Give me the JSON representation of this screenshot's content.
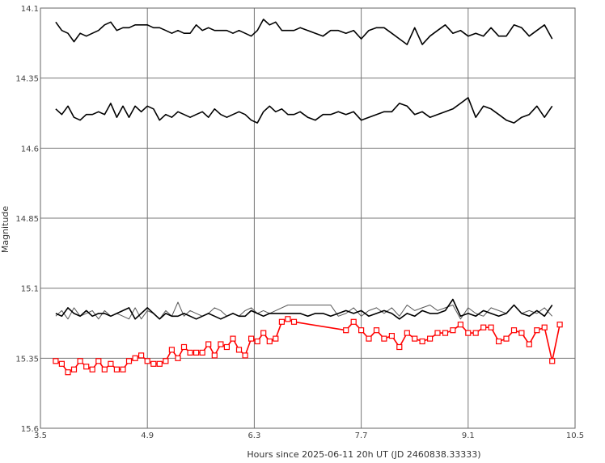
{
  "chart_data": {
    "type": "line",
    "title": "",
    "xlabel": "Hours since 2025-06-11 20h UT (JD 2460838.33333)",
    "ylabel": "Magnitude",
    "xlim": [
      3.5,
      10.5
    ],
    "ylim": [
      15.6,
      14.1
    ],
    "y_inverted": true,
    "grid": true,
    "x_ticks": [
      "3.5",
      "4.9",
      "6.3",
      "7.7",
      "9.1",
      "10.5"
    ],
    "y_ticks": [
      "14.1",
      "14.35",
      "14.6",
      "14.85",
      "15.1",
      "15.35",
      "15.6"
    ],
    "series": [
      {
        "color": "#000000",
        "style": "thick-line",
        "x": [
          3.7,
          3.78,
          3.86,
          3.94,
          4.02,
          4.1,
          4.18,
          4.26,
          4.34,
          4.42,
          4.5,
          4.58,
          4.66,
          4.74,
          4.82,
          4.9,
          4.98,
          5.06,
          5.14,
          5.22,
          5.3,
          5.38,
          5.46,
          5.54,
          5.62,
          5.7,
          5.78,
          5.86,
          5.94,
          6.02,
          6.1,
          6.18,
          6.26,
          6.34,
          6.42,
          6.5,
          6.58,
          6.66,
          6.74,
          6.82,
          6.9,
          7.0,
          7.1,
          7.2,
          7.3,
          7.4,
          7.5,
          7.6,
          7.7,
          7.8,
          7.9,
          8.0,
          8.1,
          8.2,
          8.3,
          8.4,
          8.5,
          8.6,
          8.7,
          8.8,
          8.9,
          9.0,
          9.1,
          9.2,
          9.3,
          9.4,
          9.5,
          9.6,
          9.7,
          9.8,
          9.9,
          10.0,
          10.1,
          10.2
        ],
        "y": [
          14.15,
          14.18,
          14.19,
          14.22,
          14.19,
          14.2,
          14.19,
          14.18,
          14.16,
          14.15,
          14.18,
          14.17,
          14.17,
          14.16,
          14.16,
          14.16,
          14.17,
          14.17,
          14.18,
          14.19,
          14.18,
          14.19,
          14.19,
          14.16,
          14.18,
          14.17,
          14.18,
          14.18,
          14.18,
          14.19,
          14.18,
          14.19,
          14.2,
          14.18,
          14.14,
          14.16,
          14.15,
          14.18,
          14.18,
          14.18,
          14.17,
          14.18,
          14.19,
          14.2,
          14.18,
          14.18,
          14.19,
          14.18,
          14.21,
          14.18,
          14.17,
          14.17,
          14.19,
          14.21,
          14.23,
          14.17,
          14.23,
          14.2,
          14.18,
          14.16,
          14.19,
          14.18,
          14.2,
          14.19,
          14.2,
          14.17,
          14.2,
          14.2,
          14.16,
          14.17,
          14.2,
          14.18,
          14.16,
          14.21
        ]
      },
      {
        "color": "#000000",
        "style": "thick-line",
        "x": [
          3.7,
          3.78,
          3.86,
          3.94,
          4.02,
          4.1,
          4.18,
          4.26,
          4.34,
          4.42,
          4.5,
          4.58,
          4.66,
          4.74,
          4.82,
          4.9,
          4.98,
          5.06,
          5.14,
          5.22,
          5.3,
          5.38,
          5.46,
          5.54,
          5.62,
          5.7,
          5.78,
          5.86,
          5.94,
          6.02,
          6.1,
          6.18,
          6.26,
          6.34,
          6.42,
          6.5,
          6.58,
          6.66,
          6.74,
          6.82,
          6.9,
          7.0,
          7.1,
          7.2,
          7.3,
          7.4,
          7.5,
          7.6,
          7.7,
          7.8,
          7.9,
          8.0,
          8.1,
          8.2,
          8.3,
          8.4,
          8.5,
          8.6,
          8.7,
          8.8,
          8.9,
          9.0,
          9.1,
          9.2,
          9.3,
          9.4,
          9.5,
          9.6,
          9.7,
          9.8,
          9.9,
          10.0,
          10.1,
          10.2
        ],
        "y": [
          14.46,
          14.48,
          14.45,
          14.49,
          14.5,
          14.48,
          14.48,
          14.47,
          14.48,
          14.44,
          14.49,
          14.45,
          14.49,
          14.45,
          14.47,
          14.45,
          14.46,
          14.5,
          14.48,
          14.49,
          14.47,
          14.48,
          14.49,
          14.48,
          14.47,
          14.49,
          14.46,
          14.48,
          14.49,
          14.48,
          14.47,
          14.48,
          14.5,
          14.51,
          14.47,
          14.45,
          14.47,
          14.46,
          14.48,
          14.48,
          14.47,
          14.49,
          14.5,
          14.48,
          14.48,
          14.47,
          14.48,
          14.47,
          14.5,
          14.49,
          14.48,
          14.47,
          14.47,
          14.44,
          14.45,
          14.48,
          14.47,
          14.49,
          14.48,
          14.47,
          14.46,
          14.44,
          14.42,
          14.49,
          14.45,
          14.46,
          14.48,
          14.5,
          14.51,
          14.49,
          14.48,
          14.45,
          14.49,
          14.45
        ]
      },
      {
        "color": "#555555",
        "style": "thin-line",
        "x": [
          3.7,
          3.78,
          3.86,
          3.94,
          4.02,
          4.1,
          4.18,
          4.26,
          4.34,
          4.42,
          4.5,
          4.58,
          4.66,
          4.74,
          4.82,
          4.9,
          4.98,
          5.06,
          5.14,
          5.22,
          5.3,
          5.38,
          5.46,
          5.54,
          5.62,
          5.7,
          5.78,
          5.86,
          5.94,
          6.02,
          6.1,
          6.18,
          6.26,
          6.34,
          6.42,
          6.5,
          6.58,
          6.66,
          6.74,
          6.82,
          6.9,
          7.0,
          7.1,
          7.2,
          7.3,
          7.4,
          7.5,
          7.6,
          7.7,
          7.8,
          7.9,
          8.0,
          8.1,
          8.2,
          8.3,
          8.4,
          8.5,
          8.6,
          8.7,
          8.8,
          8.9,
          9.0,
          9.1,
          9.2,
          9.3,
          9.4,
          9.5,
          9.6,
          9.7,
          9.8,
          9.9,
          10.0,
          10.1,
          10.2
        ],
        "y": [
          15.2,
          15.18,
          15.21,
          15.17,
          15.2,
          15.19,
          15.18,
          15.21,
          15.18,
          15.2,
          15.19,
          15.2,
          15.21,
          15.17,
          15.21,
          15.18,
          15.19,
          15.21,
          15.18,
          15.2,
          15.15,
          15.2,
          15.18,
          15.19,
          15.2,
          15.19,
          15.17,
          15.18,
          15.2,
          15.19,
          15.2,
          15.18,
          15.17,
          15.19,
          15.18,
          15.19,
          15.18,
          15.17,
          15.16,
          15.16,
          15.16,
          15.16,
          15.16,
          15.16,
          15.16,
          15.2,
          15.19,
          15.17,
          15.2,
          15.18,
          15.17,
          15.19,
          15.17,
          15.2,
          15.16,
          15.18,
          15.17,
          15.16,
          15.18,
          15.17,
          15.16,
          15.21,
          15.17,
          15.19,
          15.2,
          15.17,
          15.18,
          15.19,
          15.16,
          15.19,
          15.18,
          15.19,
          15.17,
          15.2
        ]
      },
      {
        "color": "#000000",
        "style": "thick-line",
        "x": [
          3.7,
          3.78,
          3.86,
          3.94,
          4.02,
          4.1,
          4.18,
          4.26,
          4.34,
          4.42,
          4.5,
          4.58,
          4.66,
          4.74,
          4.82,
          4.9,
          4.98,
          5.06,
          5.14,
          5.22,
          5.3,
          5.38,
          5.46,
          5.54,
          5.62,
          5.7,
          5.78,
          5.86,
          5.94,
          6.02,
          6.1,
          6.18,
          6.26,
          6.34,
          6.42,
          6.5,
          6.58,
          6.66,
          6.74,
          6.82,
          6.9,
          7.0,
          7.1,
          7.2,
          7.3,
          7.4,
          7.5,
          7.6,
          7.7,
          7.8,
          7.9,
          8.0,
          8.1,
          8.2,
          8.3,
          8.4,
          8.5,
          8.6,
          8.7,
          8.8,
          8.9,
          9.0,
          9.1,
          9.2,
          9.3,
          9.4,
          9.5,
          9.6,
          9.7,
          9.8,
          9.9,
          10.0,
          10.1,
          10.2
        ],
        "y": [
          15.19,
          15.2,
          15.17,
          15.19,
          15.2,
          15.18,
          15.2,
          15.19,
          15.19,
          15.2,
          15.19,
          15.18,
          15.17,
          15.21,
          15.19,
          15.17,
          15.19,
          15.21,
          15.19,
          15.2,
          15.2,
          15.19,
          15.2,
          15.21,
          15.2,
          15.19,
          15.2,
          15.21,
          15.2,
          15.19,
          15.2,
          15.2,
          15.18,
          15.19,
          15.2,
          15.19,
          15.19,
          15.19,
          15.19,
          15.19,
          15.19,
          15.2,
          15.19,
          15.19,
          15.2,
          15.19,
          15.18,
          15.19,
          15.18,
          15.2,
          15.19,
          15.18,
          15.19,
          15.21,
          15.19,
          15.2,
          15.18,
          15.19,
          15.19,
          15.18,
          15.14,
          15.2,
          15.19,
          15.2,
          15.18,
          15.19,
          15.2,
          15.19,
          15.16,
          15.19,
          15.2,
          15.18,
          15.2,
          15.16
        ]
      },
      {
        "color": "#ff0000",
        "style": "marker-square",
        "x": [
          3.7,
          3.78,
          3.86,
          3.94,
          4.02,
          4.1,
          4.18,
          4.26,
          4.34,
          4.42,
          4.5,
          4.58,
          4.66,
          4.74,
          4.82,
          4.9,
          4.98,
          5.06,
          5.14,
          5.22,
          5.3,
          5.38,
          5.46,
          5.54,
          5.62,
          5.7,
          5.78,
          5.86,
          5.94,
          6.02,
          6.1,
          6.18,
          6.26,
          6.34,
          6.42,
          6.5,
          6.58,
          6.66,
          6.74,
          6.82,
          7.5,
          7.6,
          7.7,
          7.8,
          7.9,
          8.0,
          8.1,
          8.2,
          8.3,
          8.4,
          8.5,
          8.6,
          8.7,
          8.8,
          8.9,
          9.0,
          9.1,
          9.2,
          9.3,
          9.4,
          9.5,
          9.6,
          9.7,
          9.8,
          9.9,
          10.0,
          10.1,
          10.2,
          10.3
        ],
        "y": [
          15.36,
          15.37,
          15.4,
          15.39,
          15.36,
          15.38,
          15.39,
          15.36,
          15.39,
          15.37,
          15.39,
          15.39,
          15.36,
          15.35,
          15.34,
          15.36,
          15.37,
          15.37,
          15.36,
          15.32,
          15.35,
          15.31,
          15.33,
          15.33,
          15.33,
          15.3,
          15.34,
          15.3,
          15.31,
          15.28,
          15.32,
          15.34,
          15.28,
          15.29,
          15.26,
          15.29,
          15.28,
          15.22,
          15.21,
          15.22,
          15.25,
          15.22,
          15.25,
          15.28,
          15.25,
          15.28,
          15.27,
          15.31,
          15.26,
          15.28,
          15.29,
          15.28,
          15.26,
          15.26,
          15.25,
          15.23,
          15.26,
          15.26,
          15.24,
          15.24,
          15.29,
          15.28,
          15.25,
          15.26,
          15.3,
          15.25,
          15.24,
          15.36,
          15.23
        ]
      }
    ]
  }
}
